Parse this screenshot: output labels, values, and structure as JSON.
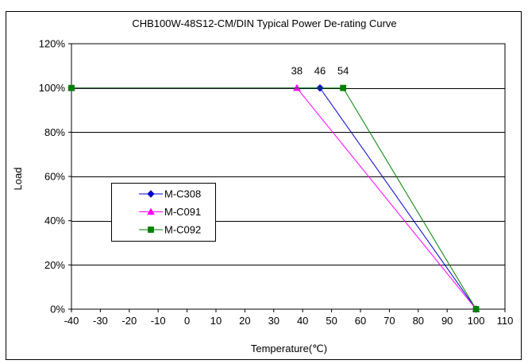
{
  "chart_data": {
    "type": "line",
    "title": "CHB100W-48S12-CM/DIN Typical Power De-rating Curve",
    "xlabel": "Temperature(℃)",
    "ylabel": "Load",
    "xlim": [
      -40,
      110
    ],
    "ylim": [
      0,
      120
    ],
    "x_ticks": [
      -40,
      -30,
      -20,
      -10,
      0,
      10,
      20,
      30,
      40,
      50,
      60,
      70,
      80,
      90,
      100,
      110
    ],
    "y_ticks": [
      0,
      20,
      40,
      60,
      80,
      100,
      120
    ],
    "y_tick_suffix": "%",
    "grid": "horizontal",
    "legend_position": "center-left",
    "series": [
      {
        "name": "M-C308",
        "color": "#0000CC",
        "marker": "diamond",
        "x": [
          -40,
          46,
          100
        ],
        "y": [
          100,
          100,
          0
        ]
      },
      {
        "name": "M-C091",
        "color": "#FF00FF",
        "marker": "triangle",
        "x": [
          -40,
          38,
          100
        ],
        "y": [
          100,
          100,
          0
        ]
      },
      {
        "name": "M-C092",
        "color": "#008000",
        "marker": "square",
        "x": [
          -40,
          54,
          100
        ],
        "y": [
          100,
          100,
          0
        ]
      }
    ],
    "annotations": [
      {
        "text": "38",
        "x": 38,
        "y": 100
      },
      {
        "text": "46",
        "x": 46,
        "y": 100
      },
      {
        "text": "54",
        "x": 54,
        "y": 100
      }
    ]
  }
}
